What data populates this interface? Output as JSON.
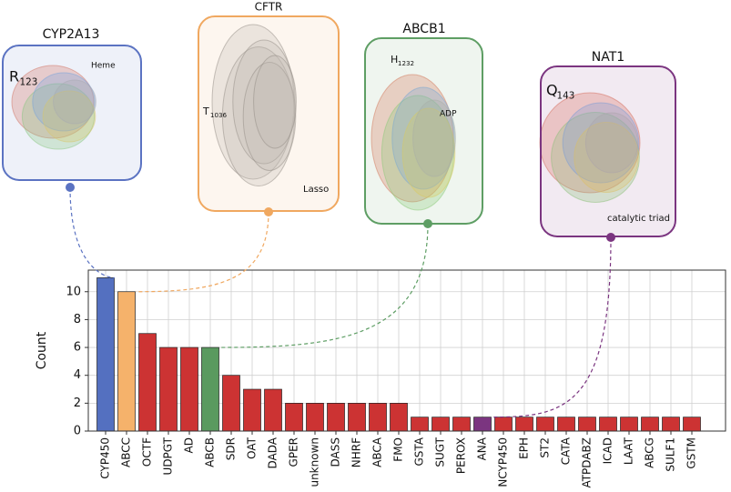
{
  "chart_data": {
    "type": "bar",
    "ylabel": "Count",
    "categories": [
      "CYP450",
      "ABCC",
      "OCTF",
      "UDPGT",
      "AD",
      "ABCB",
      "SDR",
      "OAT",
      "DADA",
      "GPER",
      "unknown",
      "DASS",
      "NHRF",
      "ABCA",
      "FMO",
      "GSTA",
      "SUGT",
      "PEROX",
      "ANA",
      "NCYP450",
      "EPH",
      "ST2",
      "CATA",
      "ATPDABZ",
      "ICAD",
      "LAAT",
      "ABCG",
      "SULF1",
      "GSTM"
    ],
    "values": [
      11,
      10,
      7,
      6,
      6,
      6,
      4,
      3,
      3,
      2,
      2,
      2,
      2,
      2,
      2,
      1,
      1,
      1,
      1,
      1,
      1,
      1,
      1,
      1,
      1,
      1,
      1,
      1,
      1
    ],
    "colors": [
      "#5470c0",
      "#f5b26b",
      "#cc3333",
      "#cc3333",
      "#cc3333",
      "#5a9a5f",
      "#cc3333",
      "#cc3333",
      "#cc3333",
      "#cc3333",
      "#cc3333",
      "#cc3333",
      "#cc3333",
      "#cc3333",
      "#cc3333",
      "#cc3333",
      "#cc3333",
      "#cc3333",
      "#7b3580",
      "#cc3333",
      "#cc3333",
      "#cc3333",
      "#cc3333",
      "#cc3333",
      "#cc3333",
      "#cc3333",
      "#cc3333",
      "#cc3333",
      "#cc3333"
    ],
    "ylim": [
      0,
      11.55
    ],
    "yticks": [
      0,
      2,
      4,
      6,
      8,
      10
    ],
    "grid": true
  },
  "panels": [
    {
      "title": "CYP2A13",
      "residue": {
        "letter": "R",
        "sub": "123"
      },
      "label": "Heme",
      "color": "#5b73c2"
    },
    {
      "title": "CFTR",
      "residue": {
        "letter": "T",
        "sub": "1036"
      },
      "label": "Lasso",
      "color": "#f0a860"
    },
    {
      "title": "ABCB1",
      "residue": {
        "letter": "H",
        "sub": "1232"
      },
      "label": "ADP",
      "color": "#5e9e64"
    },
    {
      "title": "NAT1",
      "residue": {
        "letter": "Q",
        "sub": "143"
      },
      "label": "catalytic triad",
      "color": "#7b3580"
    }
  ]
}
